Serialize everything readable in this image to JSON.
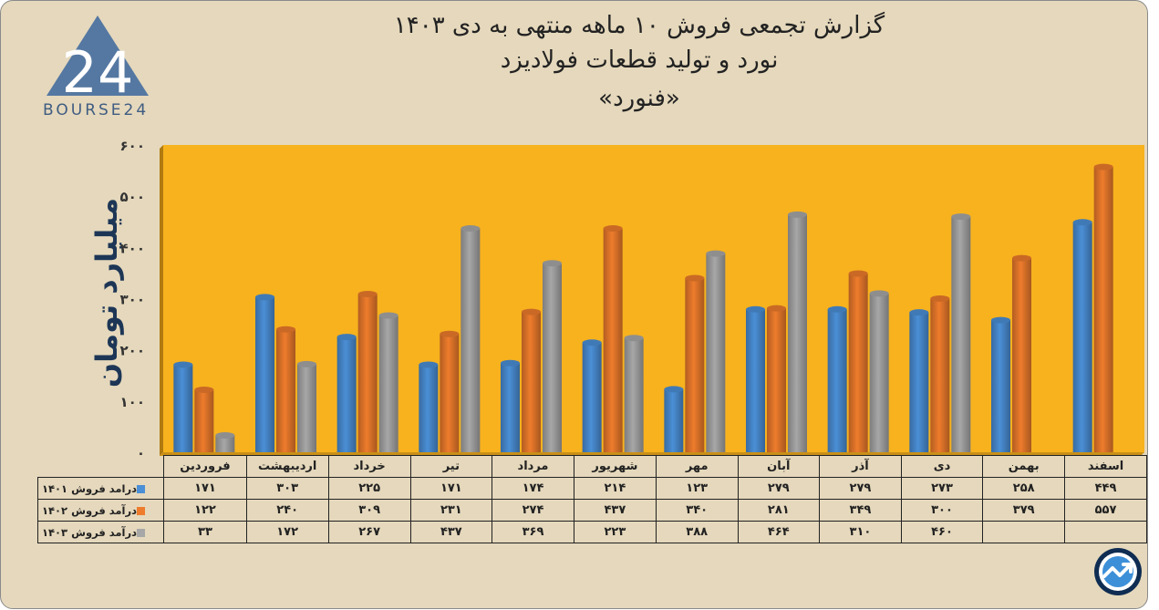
{
  "header": {
    "title_line1": "گزارش تجمعی فروش ۱۰ ماهه منتهی به دی ۱۴۰۳",
    "title_line2": "نورد و تولید قطعات فولادیزد",
    "title_line3": "«فنورد»"
  },
  "logo": {
    "text": "BOURSE24",
    "mark": "24"
  },
  "badge": {
    "icon": "trend-chart-icon"
  },
  "colors": {
    "background": "#e5d8bc",
    "plot_area": "#f7b21e",
    "s1401": "#4b8fd6",
    "s1402": "#ee7c2c",
    "s1403": "#a7a7a7"
  },
  "chart_data": {
    "type": "bar",
    "ylabel": "میلیارد تومان",
    "ylim": [
      0,
      600
    ],
    "yticks": [
      "۰",
      "۱۰۰",
      "۲۰۰",
      "۳۰۰",
      "۴۰۰",
      "۵۰۰",
      "۶۰۰"
    ],
    "ytick_values": [
      0,
      100,
      200,
      300,
      400,
      500,
      600
    ],
    "grid": false,
    "categories": [
      "فروردین",
      "اردیبهشت",
      "خرداد",
      "تیر",
      "مرداد",
      "شهریور",
      "مهر",
      "آبان",
      "آذر",
      "دی",
      "بهمن",
      "اسفند"
    ],
    "series": [
      {
        "name": "درامد فروش ۱۴۰۱",
        "color": "#4b8fd6",
        "values": [
          171,
          303,
          225,
          171,
          174,
          214,
          123,
          279,
          279,
          273,
          258,
          449
        ],
        "labels": [
          "۱۷۱",
          "۳۰۳",
          "۲۲۵",
          "۱۷۱",
          "۱۷۴",
          "۲۱۴",
          "۱۲۳",
          "۲۷۹",
          "۲۷۹",
          "۲۷۳",
          "۲۵۸",
          "۴۴۹"
        ]
      },
      {
        "name": "درآمد فروش ۱۴۰۲",
        "color": "#ee7c2c",
        "values": [
          122,
          240,
          309,
          231,
          274,
          437,
          340,
          281,
          349,
          300,
          379,
          557
        ],
        "labels": [
          "۱۲۲",
          "۲۴۰",
          "۳۰۹",
          "۲۳۱",
          "۲۷۴",
          "۴۳۷",
          "۳۴۰",
          "۲۸۱",
          "۳۴۹",
          "۳۰۰",
          "۳۷۹",
          "۵۵۷"
        ]
      },
      {
        "name": "درآمد فروش ۱۴۰۳",
        "color": "#a7a7a7",
        "values": [
          33,
          172,
          267,
          437,
          369,
          223,
          388,
          464,
          310,
          460,
          null,
          null
        ],
        "labels": [
          "۳۳",
          "۱۷۲",
          "۲۶۷",
          "۴۳۷",
          "۳۶۹",
          "۲۲۳",
          "۳۸۸",
          "۴۶۴",
          "۳۱۰",
          "۴۶۰",
          "",
          ""
        ]
      }
    ]
  }
}
